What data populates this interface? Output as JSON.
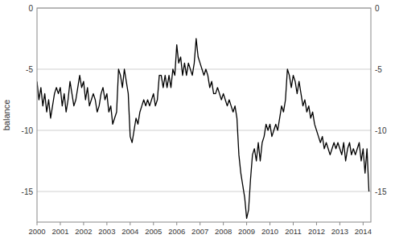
{
  "chart_data": {
    "type": "line",
    "ylabel": "balance",
    "color": "#000000",
    "grid": true,
    "xlim": [
      2000,
      2014.333
    ],
    "xticks": [
      2000,
      2001,
      2002,
      2003,
      2004,
      2005,
      2006,
      2007,
      2008,
      2009,
      2010,
      2011,
      2012,
      2013,
      2014
    ],
    "ylim": [
      -17.5,
      0.0
    ],
    "yticks": [
      0,
      -5,
      -10,
      -15
    ],
    "y2lim": [
      -17.5,
      0.0
    ],
    "y2ticks": [
      0,
      -5,
      -10,
      -15
    ],
    "x": [
      2000.0,
      2000.083,
      2000.167,
      2000.25,
      2000.333,
      2000.417,
      2000.5,
      2000.583,
      2000.667,
      2000.75,
      2000.833,
      2000.917,
      2001.0,
      2001.083,
      2001.167,
      2001.25,
      2001.333,
      2001.417,
      2001.5,
      2001.583,
      2001.667,
      2001.75,
      2001.833,
      2001.917,
      2002.0,
      2002.083,
      2002.167,
      2002.25,
      2002.333,
      2002.417,
      2002.5,
      2002.583,
      2002.667,
      2002.75,
      2002.833,
      2002.917,
      2003.0,
      2003.083,
      2003.167,
      2003.25,
      2003.333,
      2003.417,
      2003.5,
      2003.583,
      2003.667,
      2003.75,
      2003.833,
      2003.917,
      2004.0,
      2004.083,
      2004.167,
      2004.25,
      2004.333,
      2004.417,
      2004.5,
      2004.583,
      2004.667,
      2004.75,
      2004.833,
      2004.917,
      2005.0,
      2005.083,
      2005.167,
      2005.25,
      2005.333,
      2005.417,
      2005.5,
      2005.583,
      2005.667,
      2005.75,
      2005.833,
      2005.917,
      2006.0,
      2006.083,
      2006.167,
      2006.25,
      2006.333,
      2006.417,
      2006.5,
      2006.583,
      2006.667,
      2006.75,
      2006.833,
      2006.917,
      2007.0,
      2007.083,
      2007.167,
      2007.25,
      2007.333,
      2007.417,
      2007.5,
      2007.583,
      2007.667,
      2007.75,
      2007.833,
      2007.917,
      2008.0,
      2008.083,
      2008.167,
      2008.25,
      2008.333,
      2008.417,
      2008.5,
      2008.583,
      2008.667,
      2008.75,
      2008.833,
      2008.917,
      2009.0,
      2009.083,
      2009.167,
      2009.25,
      2009.333,
      2009.417,
      2009.5,
      2009.583,
      2009.667,
      2009.75,
      2009.833,
      2009.917,
      2010.0,
      2010.083,
      2010.167,
      2010.25,
      2010.333,
      2010.417,
      2010.5,
      2010.583,
      2010.667,
      2010.75,
      2010.833,
      2010.917,
      2011.0,
      2011.083,
      2011.167,
      2011.25,
      2011.333,
      2011.417,
      2011.5,
      2011.583,
      2011.667,
      2011.75,
      2011.833,
      2011.917,
      2012.0,
      2012.083,
      2012.167,
      2012.25,
      2012.333,
      2012.417,
      2012.5,
      2012.583,
      2012.667,
      2012.75,
      2012.833,
      2012.917,
      2013.0,
      2013.083,
      2013.167,
      2013.25,
      2013.333,
      2013.417,
      2013.5,
      2013.583,
      2013.667,
      2013.75,
      2013.833,
      2013.917,
      2014.0,
      2014.083,
      2014.167,
      2014.25
    ],
    "values": [
      -6.0,
      -7.5,
      -6.5,
      -8.0,
      -7.0,
      -8.5,
      -7.5,
      -9.0,
      -8.0,
      -7.0,
      -6.5,
      -7.0,
      -6.5,
      -8.0,
      -7.0,
      -8.5,
      -7.5,
      -6.0,
      -7.0,
      -8.0,
      -7.5,
      -6.5,
      -5.5,
      -6.5,
      -6.0,
      -7.5,
      -6.5,
      -8.0,
      -7.5,
      -7.0,
      -7.5,
      -8.5,
      -8.0,
      -7.0,
      -6.5,
      -7.5,
      -7.0,
      -8.5,
      -8.0,
      -9.5,
      -9.0,
      -8.5,
      -5.0,
      -5.5,
      -6.5,
      -5.0,
      -6.0,
      -7.0,
      -10.5,
      -11.0,
      -10.0,
      -9.0,
      -9.5,
      -8.5,
      -8.0,
      -7.5,
      -8.0,
      -7.5,
      -8.0,
      -7.5,
      -7.0,
      -8.0,
      -7.5,
      -5.5,
      -5.5,
      -6.5,
      -5.5,
      -6.5,
      -5.5,
      -6.5,
      -5.0,
      -5.5,
      -3.0,
      -4.5,
      -4.0,
      -5.5,
      -4.5,
      -5.5,
      -4.5,
      -5.0,
      -5.5,
      -4.5,
      -2.5,
      -4.0,
      -4.5,
      -5.0,
      -5.5,
      -5.0,
      -5.5,
      -6.5,
      -6.0,
      -7.0,
      -7.0,
      -6.5,
      -7.0,
      -7.5,
      -7.0,
      -7.5,
      -8.0,
      -7.5,
      -8.0,
      -8.5,
      -8.0,
      -9.0,
      -12.0,
      -13.5,
      -14.5,
      -15.5,
      -17.2,
      -16.5,
      -14.0,
      -12.0,
      -11.5,
      -12.5,
      -11.0,
      -12.5,
      -11.0,
      -10.5,
      -9.5,
      -10.0,
      -9.5,
      -10.5,
      -10.0,
      -9.5,
      -10.0,
      -9.0,
      -8.0,
      -8.5,
      -7.5,
      -5.0,
      -5.5,
      -6.5,
      -5.5,
      -6.0,
      -7.0,
      -6.0,
      -7.0,
      -8.0,
      -7.5,
      -8.5,
      -8.0,
      -9.0,
      -8.5,
      -9.5,
      -10.0,
      -10.5,
      -11.0,
      -10.5,
      -11.5,
      -11.0,
      -11.5,
      -12.0,
      -11.5,
      -11.0,
      -11.5,
      -11.0,
      -11.5,
      -12.0,
      -11.0,
      -12.5,
      -11.5,
      -11.0,
      -12.0,
      -11.5,
      -12.0,
      -11.5,
      -11.0,
      -12.5,
      -11.5,
      -13.5,
      -11.5,
      -15.0
    ]
  }
}
